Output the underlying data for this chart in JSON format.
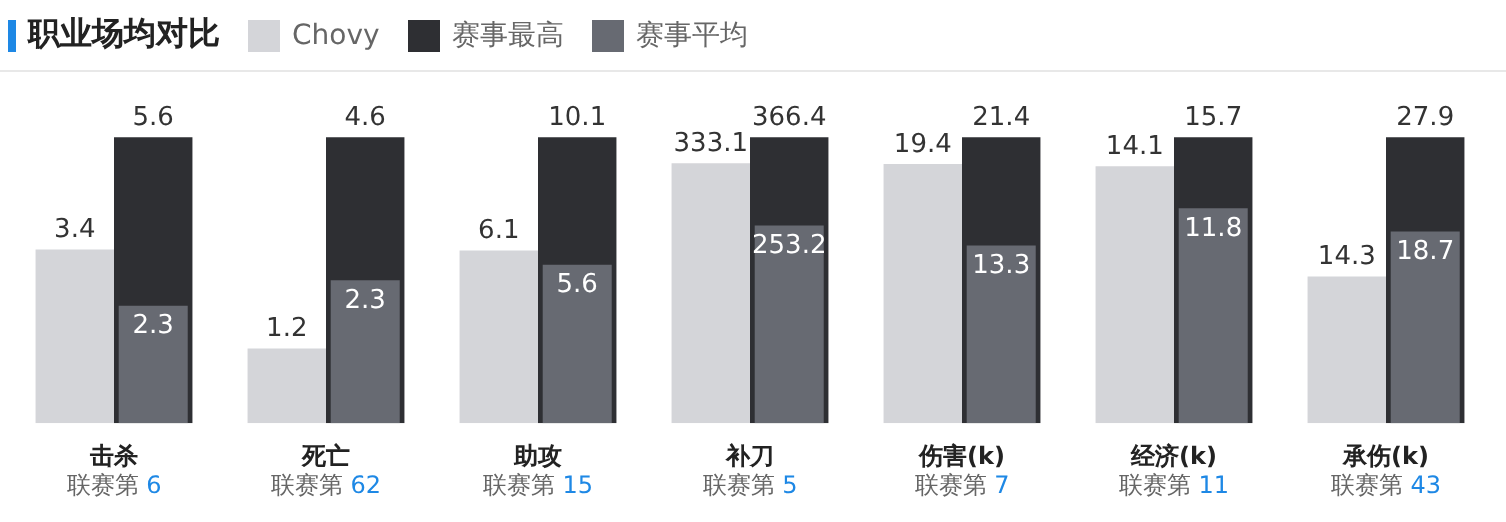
{
  "chart_data": [
    {
      "type": "bar",
      "title": "职业场均对比",
      "legend": "top right",
      "data_labels": true,
      "categories": [
        "击杀"
      ],
      "annotations": [
        "联赛第 6"
      ],
      "series": [
        {
          "name": "Chovy",
          "color": "#d4d5d9",
          "values": [
            3.4
          ]
        },
        {
          "name": "赛事最高",
          "color": "#2e2f33",
          "values": [
            5.6
          ]
        },
        {
          "name": "赛事平均",
          "color": "#676a72",
          "values": [
            2.3
          ]
        }
      ]
    },
    {
      "type": "bar",
      "data_labels": true,
      "categories": [
        "死亡"
      ],
      "annotations": [
        "联赛第 62"
      ],
      "series": [
        {
          "color": "#d4d5d9",
          "values": [
            1.2
          ]
        },
        {
          "color": "#2e2f33",
          "values": [
            4.6
          ]
        },
        {
          "color": "#676a72",
          "values": [
            2.3
          ]
        }
      ]
    },
    {
      "type": "bar",
      "data_labels": true,
      "categories": [
        "助攻"
      ],
      "annotations": [
        "联赛第 15"
      ],
      "series": [
        {
          "color": "#d4d5d9",
          "values": [
            6.1
          ]
        },
        {
          "color": "#2e2f33",
          "values": [
            10.1
          ]
        },
        {
          "color": "#676a72",
          "values": [
            5.6
          ]
        }
      ]
    },
    {
      "type": "bar",
      "data_labels": true,
      "categories": [
        "补刀"
      ],
      "annotations": [
        "联赛第 5"
      ],
      "series": [
        {
          "color": "#d4d5d9",
          "values": [
            333.1
          ]
        },
        {
          "color": "#2e2f33",
          "values": [
            366.4
          ]
        },
        {
          "color": "#676a72",
          "values": [
            253.2
          ]
        }
      ]
    },
    {
      "type": "bar",
      "data_labels": true,
      "categories": [
        "伤害(k)"
      ],
      "annotations": [
        "联赛第 7"
      ],
      "series": [
        {
          "color": "#d4d5d9",
          "values": [
            19.4
          ]
        },
        {
          "color": "#2e2f33",
          "values": [
            21.4
          ]
        },
        {
          "color": "#676a72",
          "values": [
            13.3
          ]
        }
      ]
    },
    {
      "type": "bar",
      "data_labels": true,
      "categories": [
        "经济(k)"
      ],
      "annotations": [
        "联赛第 11"
      ],
      "series": [
        {
          "color": "#d4d5d9",
          "values": [
            14.1
          ]
        },
        {
          "color": "#2e2f33",
          "values": [
            15.7
          ]
        },
        {
          "color": "#676a72",
          "values": [
            11.8
          ]
        }
      ]
    },
    {
      "type": "bar",
      "data_labels": true,
      "categories": [
        "承伤(k)"
      ],
      "annotations": [
        "联赛第 43"
      ],
      "series": [
        {
          "color": "#d4d5d9",
          "values": [
            14.3
          ]
        },
        {
          "color": "#2e2f33",
          "values": [
            27.9
          ]
        },
        {
          "color": "#676a72",
          "values": [
            18.7
          ]
        }
      ]
    }
  ]
}
